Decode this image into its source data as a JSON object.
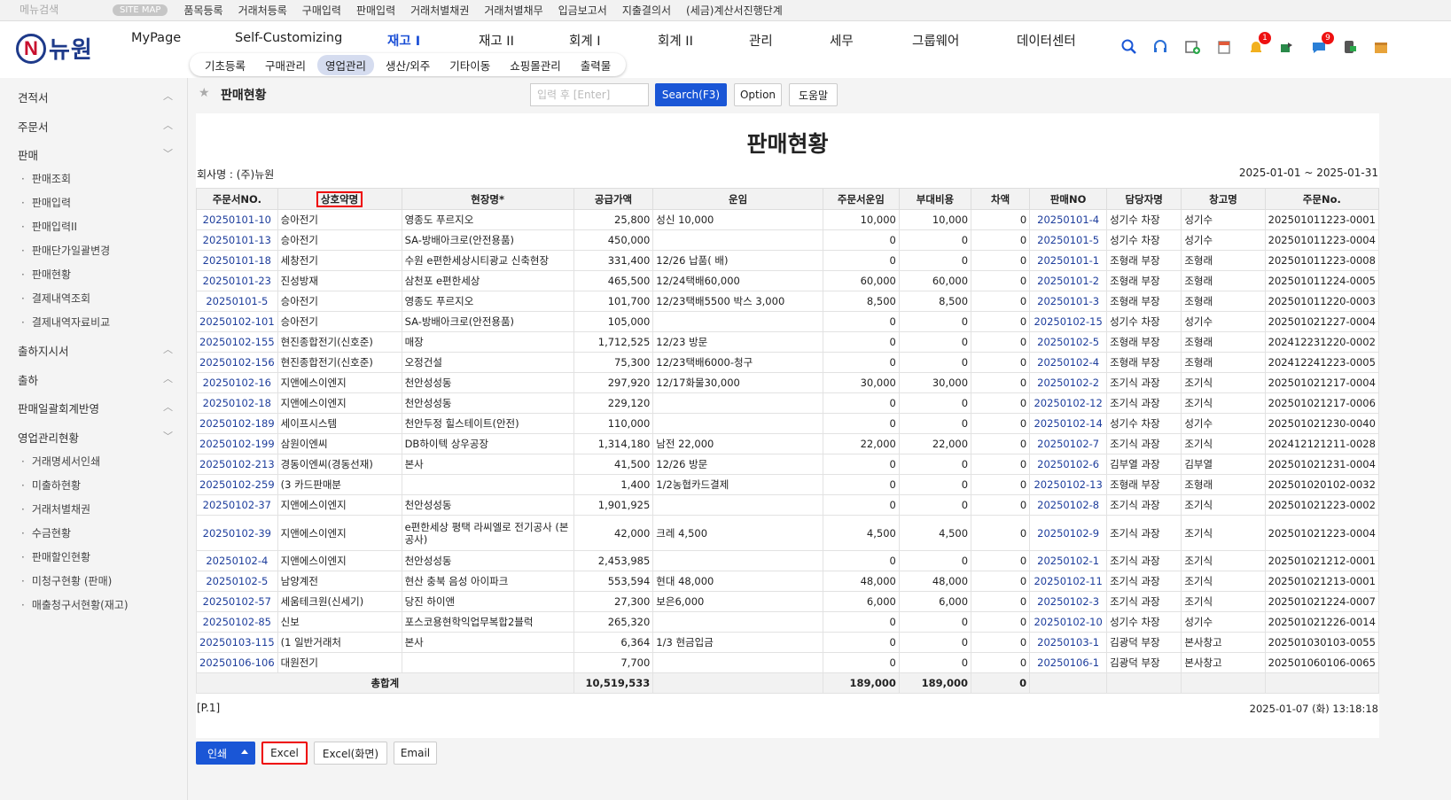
{
  "topbar": {
    "search_placeholder": "메뉴검색",
    "sitemap": "SITE MAP",
    "links": [
      "품목등록",
      "거래처등록",
      "구매입력",
      "판매입력",
      "거래처별채권",
      "거래처별채무",
      "입금보고서",
      "지출결의서",
      "(세금)계산서진행단계"
    ]
  },
  "logo": {
    "mark": "N",
    "text": "뉴원"
  },
  "main_tabs": [
    "MyPage",
    "Self-Customizing",
    "재고 I",
    "재고 II",
    "회계 I",
    "회계 II",
    "관리",
    "세무",
    "그룹웨어",
    "데이터센터"
  ],
  "sub_tabs": [
    "기초등록",
    "구매관리",
    "영업관리",
    "생산/외주",
    "기타이동",
    "쇼핑몰관리",
    "출력물"
  ],
  "header_badges": {
    "bell": "1",
    "chat": "9"
  },
  "sidebar": {
    "sections": [
      {
        "label": "견적서"
      },
      {
        "label": "주문서"
      },
      {
        "label": "판매",
        "items": [
          "판매조회",
          "판매입력",
          "판매입력II",
          "판매단가일괄변경",
          "판매현황",
          "결제내역조회",
          "결제내역자료비교"
        ]
      },
      {
        "label": "출하지시서"
      },
      {
        "label": "출하"
      },
      {
        "label": "판매일괄회계반영"
      },
      {
        "label": "영업관리현황",
        "items": [
          "거래명세서인쇄",
          "미출하현황",
          "거래처별채권",
          "수금현황",
          "판매할인현황",
          "미청구현황 (판매)",
          "매출청구서현황(재고)"
        ]
      }
    ]
  },
  "page": {
    "title": "판매현황",
    "search_placeholder": "입력 후 [Enter]",
    "search_btn": "Search(F3)",
    "option_btn": "Option",
    "help_btn": "도움말"
  },
  "report": {
    "title": "판매현황",
    "company": "회사명 : (주)뉴원",
    "date_range": "2025-01-01 ~ 2025-01-31",
    "page": "[P.1]",
    "printed": "2025-01-07 (화) 13:18:18"
  },
  "table": {
    "headers": [
      "주문서NO.",
      "상호약명",
      "현장명*",
      "공급가액",
      "운임",
      "주문서운임",
      "부대비용",
      "차액",
      "판매NO",
      "담당자명",
      "창고명",
      "주문No."
    ],
    "rows": [
      [
        "20250101-10",
        "승아전기",
        "영종도 푸르지오",
        "25,800",
        "성신 10,000",
        "10,000",
        "10,000",
        "0",
        "20250101-4",
        "성기수 차장",
        "성기수",
        "202501011223-0001"
      ],
      [
        "20250101-13",
        "승아전기",
        "SA-방배아크로(안전용품)",
        "450,000",
        "",
        "0",
        "0",
        "0",
        "20250101-5",
        "성기수 차장",
        "성기수",
        "202501011223-0004"
      ],
      [
        "20250101-18",
        "세창전기",
        "수원 e편한세상시티광교 신축현장",
        "331,400",
        "12/26 납품( 배)",
        "0",
        "0",
        "0",
        "20250101-1",
        "조형래 부장",
        "조형래",
        "202501011223-0008"
      ],
      [
        "20250101-23",
        "진성방재",
        "삼천포 e편한세상",
        "465,500",
        "12/24택배60,000",
        "60,000",
        "60,000",
        "0",
        "20250101-2",
        "조형래 부장",
        "조형래",
        "202501011224-0005"
      ],
      [
        "20250101-5",
        "승아전기",
        "영종도 푸르지오",
        "101,700",
        "12/23택배5500 박스 3,000",
        "8,500",
        "8,500",
        "0",
        "20250101-3",
        "조형래 부장",
        "조형래",
        "202501011220-0003"
      ],
      [
        "20250102-101",
        "승아전기",
        "SA-방배아크로(안전용품)",
        "105,000",
        "",
        "0",
        "0",
        "0",
        "20250102-15",
        "성기수 차장",
        "성기수",
        "202501021227-0004"
      ],
      [
        "20250102-155",
        "현진종합전기(신호준)",
        "매장",
        "1,712,525",
        "12/23 방문",
        "0",
        "0",
        "0",
        "20250102-5",
        "조형래 부장",
        "조형래",
        "202412231220-0002"
      ],
      [
        "20250102-156",
        "현진종합전기(신호준)",
        "오정건설",
        "75,300",
        "12/23택배6000-청구",
        "0",
        "0",
        "0",
        "20250102-4",
        "조형래 부장",
        "조형래",
        "202412241223-0005"
      ],
      [
        "20250102-16",
        "지앤에스이엔지",
        "천안성성동",
        "297,920",
        "12/17화물30,000",
        "30,000",
        "30,000",
        "0",
        "20250102-2",
        "조기식 과장",
        "조기식",
        "202501021217-0004"
      ],
      [
        "20250102-18",
        "지앤에스이엔지",
        "천안성성동",
        "229,120",
        "",
        "0",
        "0",
        "0",
        "20250102-12",
        "조기식 과장",
        "조기식",
        "202501021217-0006"
      ],
      [
        "20250102-189",
        "세이프시스템",
        "천안두정 힐스테이트(안전)",
        "110,000",
        "",
        "0",
        "0",
        "0",
        "20250102-14",
        "성기수 차장",
        "성기수",
        "202501021230-0040"
      ],
      [
        "20250102-199",
        "삼원이엔씨",
        "DB하이텍 상우공장",
        "1,314,180",
        "남전 22,000",
        "22,000",
        "22,000",
        "0",
        "20250102-7",
        "조기식 과장",
        "조기식",
        "202412121211-0028"
      ],
      [
        "20250102-213",
        "경동이엔씨(경동선재)",
        "본사",
        "41,500",
        "12/26 방문",
        "0",
        "0",
        "0",
        "20250102-6",
        "김부열 과장",
        "김부열",
        "202501021231-0004"
      ],
      [
        "20250102-259",
        "(3 카드판매분",
        "",
        "1,400",
        "1/2농협카드결제",
        "0",
        "0",
        "0",
        "20250102-13",
        "조형래 부장",
        "조형래",
        "202501020102-0032"
      ],
      [
        "20250102-37",
        "지앤에스이엔지",
        "천안성성동",
        "1,901,925",
        "",
        "0",
        "0",
        "0",
        "20250102-8",
        "조기식 과장",
        "조기식",
        "202501021223-0002"
      ],
      [
        "20250102-39",
        "지앤에스이엔지",
        "e편한세상 평택 라씨엘로 전기공사 (본공사)",
        "42,000",
        "크레 4,500",
        "4,500",
        "4,500",
        "0",
        "20250102-9",
        "조기식 과장",
        "조기식",
        "202501021223-0004"
      ],
      [
        "20250102-4",
        "지앤에스이엔지",
        "천안성성동",
        "2,453,985",
        "",
        "0",
        "0",
        "0",
        "20250102-1",
        "조기식 과장",
        "조기식",
        "202501021212-0001"
      ],
      [
        "20250102-5",
        "남양계전",
        "현산 충북 음성 아이파크",
        "553,594",
        "현대 48,000",
        "48,000",
        "48,000",
        "0",
        "20250102-11",
        "조기식 과장",
        "조기식",
        "202501021213-0001"
      ],
      [
        "20250102-57",
        "세움테크원(신세기)",
        "당진 하이앤",
        "27,300",
        "보은6,000",
        "6,000",
        "6,000",
        "0",
        "20250102-3",
        "조기식 과장",
        "조기식",
        "202501021224-0007"
      ],
      [
        "20250102-85",
        "신보",
        "포스코용현학익업무복합2블럭",
        "265,320",
        "",
        "0",
        "0",
        "0",
        "20250102-10",
        "성기수 차장",
        "성기수",
        "202501021226-0014"
      ],
      [
        "20250103-115",
        "(1 일반거래처",
        "본사",
        "6,364",
        "1/3 현금입금",
        "0",
        "0",
        "0",
        "20250103-1",
        "김광덕 부장",
        "본사창고",
        "202501030103-0055"
      ],
      [
        "20250106-106",
        "대원전기",
        "",
        "7,700",
        "",
        "0",
        "0",
        "0",
        "20250106-1",
        "김광덕 부장",
        "본사창고",
        "202501060106-0065"
      ]
    ],
    "total": {
      "label": "총합계",
      "supply": "10,519,533",
      "order_freight": "189,000",
      "extra": "189,000",
      "diff": "0"
    }
  },
  "bottom_buttons": {
    "print": "인쇄",
    "excel": "Excel",
    "excel_screen": "Excel(화면)",
    "email": "Email"
  }
}
